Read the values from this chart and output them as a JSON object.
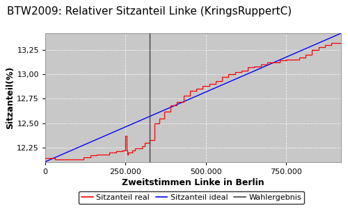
{
  "title": "BTW2009: Relativer Sitzanteil Linke (KringsRuppertC)",
  "xlabel": "Zweitstimmen Linke in Berlin",
  "ylabel": "Sitzanteil(%)",
  "xlim": [
    0,
    920000
  ],
  "ylim": [
    12.1,
    13.42
  ],
  "wahlergebnis_x": 325000,
  "ideal_x_start": 0,
  "ideal_x_end": 920000,
  "ideal_y_start": 12.105,
  "ideal_y_end": 13.42,
  "bg_color": "#c8c8c8",
  "fig_bg_color": "#ffffff",
  "title_fontsize": 11,
  "axis_label_fontsize": 9,
  "tick_fontsize": 8,
  "legend_fontsize": 8,
  "xticks": [
    0,
    250000,
    500000,
    750000
  ],
  "yticks": [
    12.25,
    12.5,
    12.75,
    13.0,
    13.25
  ],
  "real_steps_x": [
    0,
    10000,
    30000,
    50000,
    80000,
    100000,
    120000,
    140000,
    160000,
    180000,
    200000,
    220000,
    240000,
    250000,
    253000,
    256000,
    258000,
    260000,
    265000,
    270000,
    275000,
    280000,
    290000,
    300000,
    310000,
    325000,
    340000,
    355000,
    370000,
    390000,
    410000,
    430000,
    450000,
    470000,
    490000,
    510000,
    530000,
    550000,
    570000,
    590000,
    610000,
    630000,
    650000,
    670000,
    690000,
    710000,
    730000,
    750000,
    770000,
    790000,
    810000,
    830000,
    850000,
    870000,
    890000,
    910000,
    920000
  ],
  "real_steps_y": [
    12.14,
    12.14,
    12.13,
    12.13,
    12.13,
    12.13,
    12.15,
    12.17,
    12.18,
    12.18,
    12.2,
    12.21,
    12.22,
    12.37,
    12.22,
    12.18,
    12.2,
    12.2,
    12.2,
    12.22,
    12.22,
    12.24,
    12.24,
    12.26,
    12.3,
    12.33,
    12.5,
    12.55,
    12.62,
    12.68,
    12.72,
    12.78,
    12.83,
    12.85,
    12.88,
    12.9,
    12.93,
    12.97,
    13.0,
    13.02,
    13.04,
    13.07,
    13.08,
    13.1,
    13.12,
    13.12,
    13.14,
    13.15,
    13.15,
    13.17,
    13.2,
    13.25,
    13.28,
    13.3,
    13.32,
    13.32,
    13.32
  ]
}
